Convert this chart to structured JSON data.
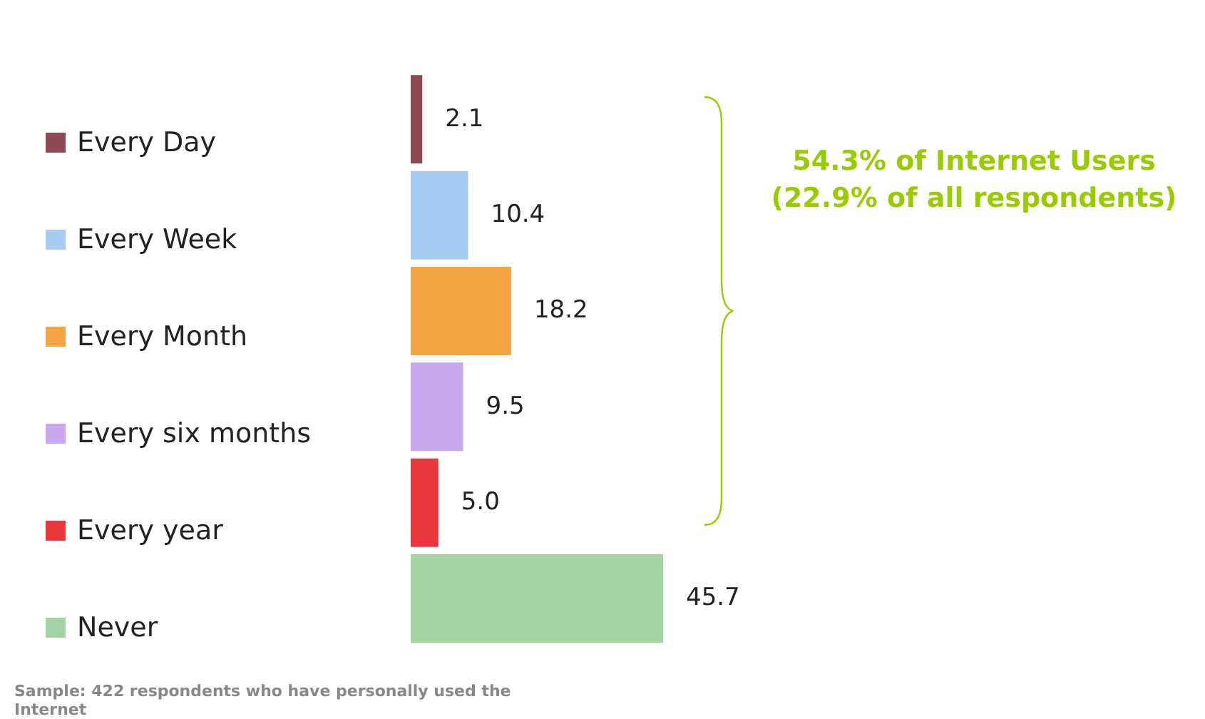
{
  "chart_data": {
    "type": "bar",
    "orientation": "horizontal",
    "stacked": true,
    "categories": [
      null,
      null,
      null,
      null,
      null,
      null
    ],
    "series": [
      {
        "name": "Every Day",
        "color": "#8e4a52",
        "values": [
          2.1,
          null,
          null,
          null,
          null,
          null
        ],
        "value_labels": [
          "2.1",
          null,
          null,
          null,
          null,
          null
        ]
      },
      {
        "name": "Every Week",
        "color": "#a9cdf2",
        "values": [
          null,
          10.4,
          null,
          null,
          null,
          null
        ],
        "value_labels": [
          null,
          "10.4",
          null,
          null,
          null,
          null
        ]
      },
      {
        "name": "Every Month",
        "color": "#f5a443",
        "values": [
          null,
          null,
          18.2,
          null,
          null,
          null
        ],
        "value_labels": [
          null,
          null,
          "18.2",
          null,
          null,
          null
        ]
      },
      {
        "name": "Every six months",
        "color": "#caa9ee",
        "values": [
          null,
          null,
          null,
          9.5,
          null,
          null
        ],
        "value_labels": [
          null,
          null,
          null,
          "9.5",
          null,
          null
        ]
      },
      {
        "name": "Every year",
        "color": "#e8383c",
        "values": [
          null,
          null,
          null,
          null,
          5.0,
          null
        ],
        "value_labels": [
          null,
          null,
          null,
          null,
          "5.0",
          null
        ]
      },
      {
        "name": "Never",
        "color": "#a3d3a3",
        "values": [
          null,
          null,
          null,
          null,
          null,
          45.7
        ],
        "value_labels": [
          null,
          null,
          null,
          null,
          null,
          "45.7"
        ]
      }
    ],
    "legend": "left",
    "tick_labels": false,
    "annotations": [
      "54.3% of Internet Users\n(22.9% of all respondents)",
      "Sample: 422 respondents who have personally used the Internet"
    ]
  }
}
